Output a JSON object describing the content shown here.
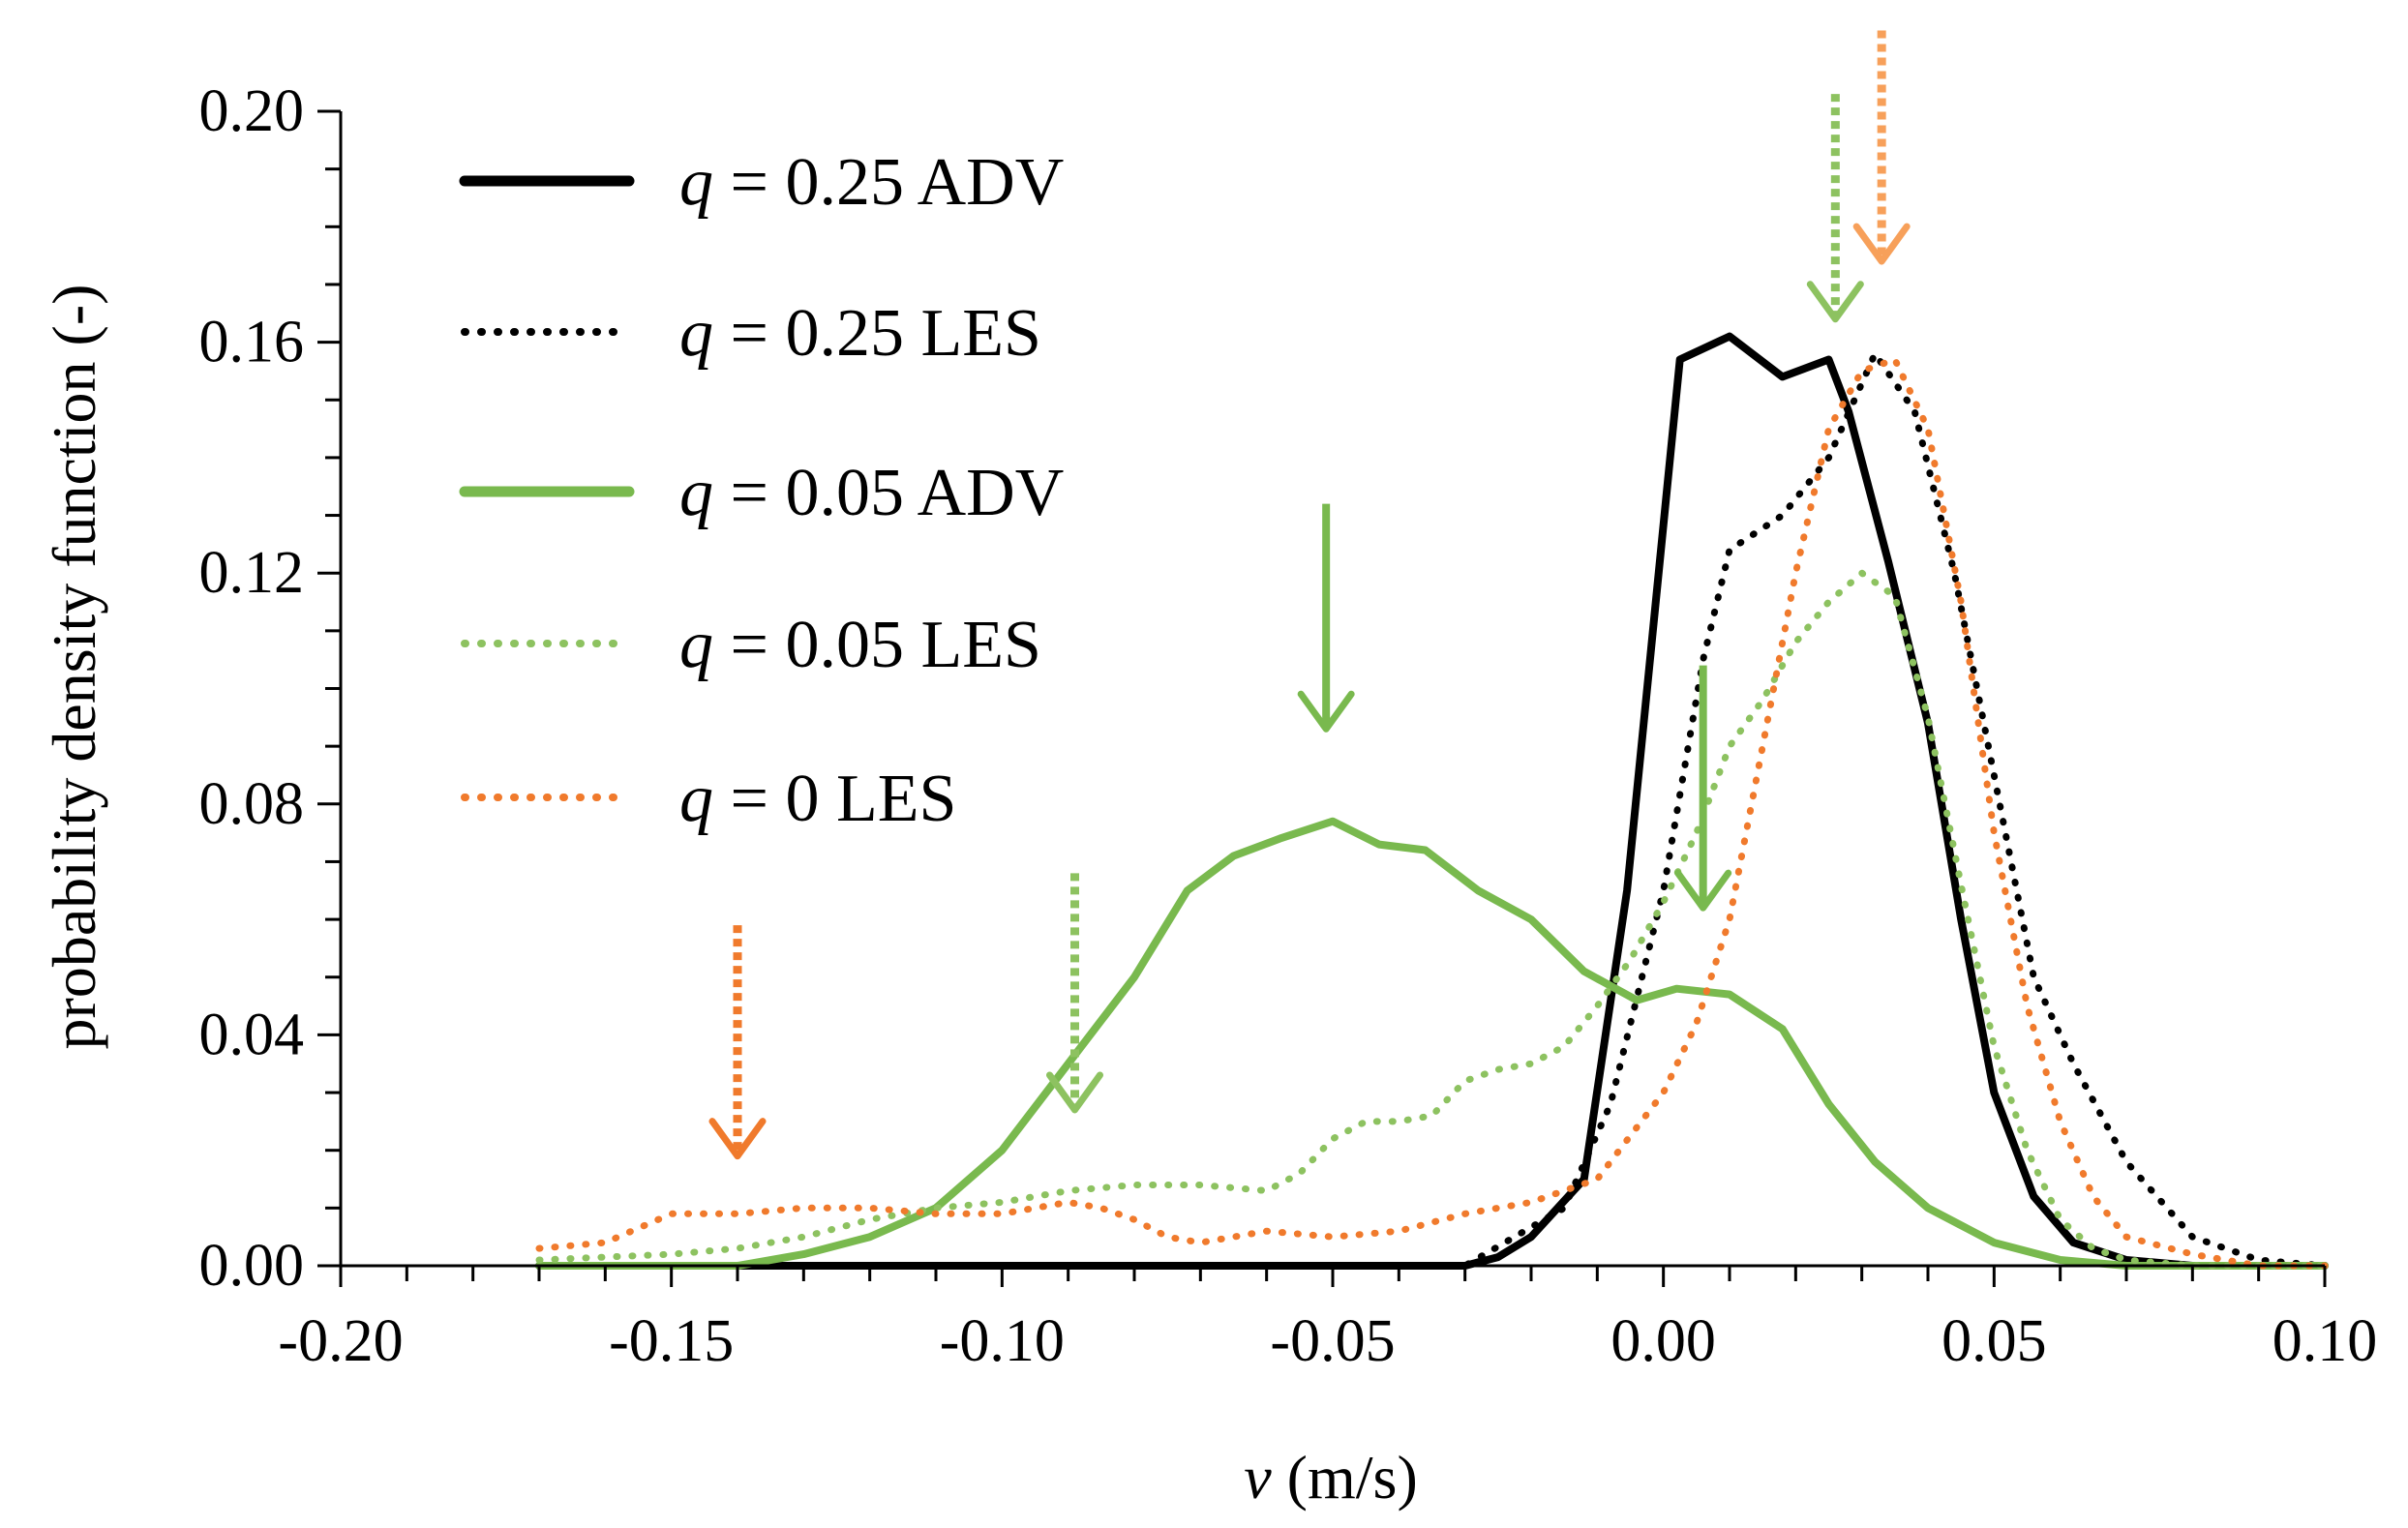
{
  "chart_data": {
    "type": "line",
    "title": "",
    "xlabel": "v",
    "xlabel_unit": " (m/s)",
    "ylabel": "probability density function (-)",
    "xlim": [
      -0.2,
      0.1
    ],
    "ylim": [
      0.0,
      0.2
    ],
    "x_ticks": [
      "-0.20",
      "-0.15",
      "-0.10",
      "-0.05",
      "0.00",
      "0.05",
      "0.10"
    ],
    "y_ticks": [
      "0.00",
      "0.04",
      "0.08",
      "0.12",
      "0.16",
      "0.20"
    ],
    "grid": false,
    "legend_position": "top-left",
    "series": [
      {
        "name": "q = 0.25 ADV",
        "legend_var": "q",
        "legend_rest": " = 0.25 ADV",
        "color": "#000000",
        "style": "solid",
        "x": [
          -0.17,
          -0.03,
          -0.025,
          -0.02,
          -0.012,
          -0.0055,
          0.0025,
          0.01,
          0.018,
          0.025,
          0.028,
          0.034,
          0.04,
          0.045,
          0.05,
          0.056,
          0.062,
          0.07,
          0.08,
          0.1
        ],
        "y": [
          0.0,
          0.0,
          0.0015,
          0.005,
          0.015,
          0.065,
          0.157,
          0.161,
          0.154,
          0.157,
          0.148,
          0.122,
          0.094,
          0.06,
          0.03,
          0.012,
          0.004,
          0.001,
          0.0,
          0.0
        ]
      },
      {
        "name": "q = 0.25 LES",
        "legend_var": "q",
        "legend_rest": " = 0.25 LES",
        "color": "#000000",
        "style": "dotted",
        "x": [
          -0.17,
          -0.03,
          -0.015,
          -0.008,
          0.0,
          0.006,
          0.01,
          0.018,
          0.025,
          0.032,
          0.038,
          0.044,
          0.05,
          0.056,
          0.062,
          0.07,
          0.08,
          0.09,
          0.1
        ],
        "y": [
          0.0,
          0.0,
          0.01,
          0.028,
          0.065,
          0.105,
          0.124,
          0.13,
          0.14,
          0.158,
          0.148,
          0.12,
          0.085,
          0.05,
          0.035,
          0.018,
          0.005,
          0.001,
          0.0
        ]
      },
      {
        "name": "q = 0.05 ADV",
        "legend_var": "q",
        "legend_rest": " = 0.05 ADV",
        "color": "#79b94e",
        "style": "solid",
        "x": [
          -0.17,
          -0.14,
          -0.13,
          -0.12,
          -0.11,
          -0.1,
          -0.09,
          -0.08,
          -0.072,
          -0.065,
          -0.058,
          -0.05,
          -0.043,
          -0.036,
          -0.028,
          -0.02,
          -0.012,
          -0.004,
          0.002,
          0.01,
          0.018,
          0.025,
          0.032,
          0.04,
          0.05,
          0.06,
          0.07,
          0.08,
          0.1
        ],
        "y": [
          0.0,
          0.0,
          0.002,
          0.005,
          0.01,
          0.02,
          0.035,
          0.05,
          0.065,
          0.071,
          0.074,
          0.077,
          0.073,
          0.072,
          0.065,
          0.06,
          0.051,
          0.046,
          0.048,
          0.047,
          0.041,
          0.028,
          0.018,
          0.01,
          0.004,
          0.001,
          0.0,
          0.0,
          0.0
        ]
      },
      {
        "name": "q = 0.05 LES",
        "legend_var": "q",
        "legend_rest": " = 0.05 LES",
        "color": "#8dc260",
        "style": "dotted",
        "x": [
          -0.17,
          -0.15,
          -0.14,
          -0.13,
          -0.12,
          -0.11,
          -0.1,
          -0.09,
          -0.08,
          -0.07,
          -0.06,
          -0.055,
          -0.05,
          -0.045,
          -0.04,
          -0.035,
          -0.03,
          -0.025,
          -0.02,
          -0.015,
          -0.01,
          -0.005,
          0.0,
          0.005,
          0.01,
          0.015,
          0.02,
          0.025,
          0.03,
          0.035,
          0.04,
          0.045,
          0.05,
          0.055,
          0.06,
          0.065,
          0.07,
          0.08,
          0.1
        ],
        "y": [
          0.001,
          0.002,
          0.003,
          0.005,
          0.008,
          0.01,
          0.011,
          0.013,
          0.014,
          0.014,
          0.013,
          0.016,
          0.022,
          0.025,
          0.025,
          0.026,
          0.032,
          0.034,
          0.035,
          0.038,
          0.045,
          0.053,
          0.063,
          0.075,
          0.09,
          0.098,
          0.108,
          0.115,
          0.12,
          0.116,
          0.095,
          0.066,
          0.038,
          0.02,
          0.008,
          0.003,
          0.001,
          0.0,
          0.0
        ]
      },
      {
        "name": "q = 0 LES",
        "legend_var": "q",
        "legend_rest": " = 0 LES",
        "color": "#f07a2c",
        "style": "dotted",
        "x": [
          -0.17,
          -0.16,
          -0.15,
          -0.14,
          -0.13,
          -0.12,
          -0.11,
          -0.1,
          -0.09,
          -0.085,
          -0.08,
          -0.075,
          -0.07,
          -0.065,
          -0.06,
          -0.05,
          -0.04,
          -0.03,
          -0.02,
          -0.01,
          0.0,
          0.005,
          0.01,
          0.015,
          0.02,
          0.025,
          0.03,
          0.035,
          0.04,
          0.045,
          0.05,
          0.055,
          0.06,
          0.065,
          0.07,
          0.08,
          0.09,
          0.1
        ],
        "y": [
          0.003,
          0.004,
          0.009,
          0.009,
          0.01,
          0.01,
          0.009,
          0.009,
          0.011,
          0.01,
          0.008,
          0.005,
          0.004,
          0.005,
          0.006,
          0.005,
          0.006,
          0.009,
          0.011,
          0.015,
          0.03,
          0.042,
          0.06,
          0.09,
          0.12,
          0.145,
          0.155,
          0.157,
          0.145,
          0.115,
          0.075,
          0.045,
          0.025,
          0.012,
          0.005,
          0.002,
          0.0,
          0.0
        ]
      }
    ],
    "annotations": [
      {
        "name": "arrow-q005-adv-left",
        "kind": "arrow",
        "x": -0.051,
        "y_top": 0.132,
        "y_tip": 0.093,
        "color": "#79b94e",
        "style": "solid"
      },
      {
        "name": "arrow-q005-adv-right",
        "kind": "arrow",
        "x": 0.006,
        "y_top": 0.104,
        "y_tip": 0.062,
        "color": "#79b94e",
        "style": "solid"
      },
      {
        "name": "arrow-q005-les-left",
        "kind": "arrow",
        "x": -0.089,
        "y_top": 0.068,
        "y_tip": 0.027,
        "color": "#8dc260",
        "style": "dotted"
      },
      {
        "name": "arrow-q005-les-right",
        "kind": "arrow",
        "x": 0.026,
        "y_top": 0.203,
        "y_tip": 0.164,
        "color": "#8dc260",
        "style": "dotted"
      },
      {
        "name": "arrow-q0-les-left",
        "kind": "arrow",
        "x": -0.14,
        "y_top": 0.059,
        "y_tip": 0.019,
        "color": "#f07a2c",
        "style": "dotted"
      },
      {
        "name": "arrow-q0-les-right",
        "kind": "arrow",
        "x": 0.033,
        "y_top": 0.214,
        "y_tip": 0.174,
        "color": "#f7a05a",
        "style": "dotted"
      }
    ]
  }
}
